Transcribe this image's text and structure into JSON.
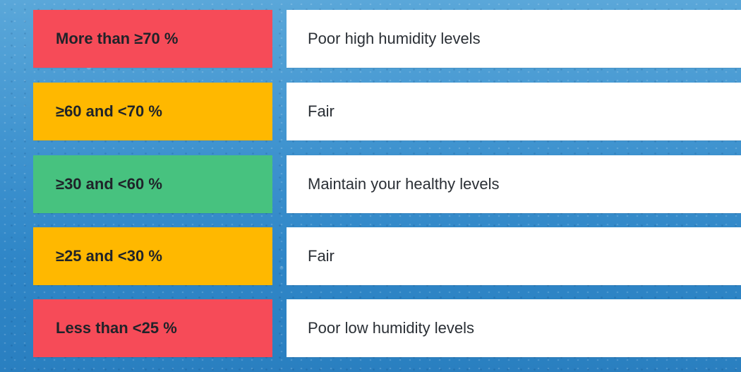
{
  "colors": {
    "red": "#f64b58",
    "amber": "#ffb800",
    "green": "#47c27f"
  },
  "rows": [
    {
      "range": "More than ≥70 %",
      "status": "Poor high humidity levels",
      "color": "#f64b58"
    },
    {
      "range": "≥60 and <70 %",
      "status": "Fair",
      "color": "#ffb800"
    },
    {
      "range": "≥30 and <60 %",
      "status": "Maintain your healthy levels",
      "color": "#47c27f"
    },
    {
      "range": "≥25 and <30 %",
      "status": "Fair",
      "color": "#ffb800"
    },
    {
      "range": "Less than <25 %",
      "status": "Poor low humidity levels",
      "color": "#f64b58"
    }
  ]
}
